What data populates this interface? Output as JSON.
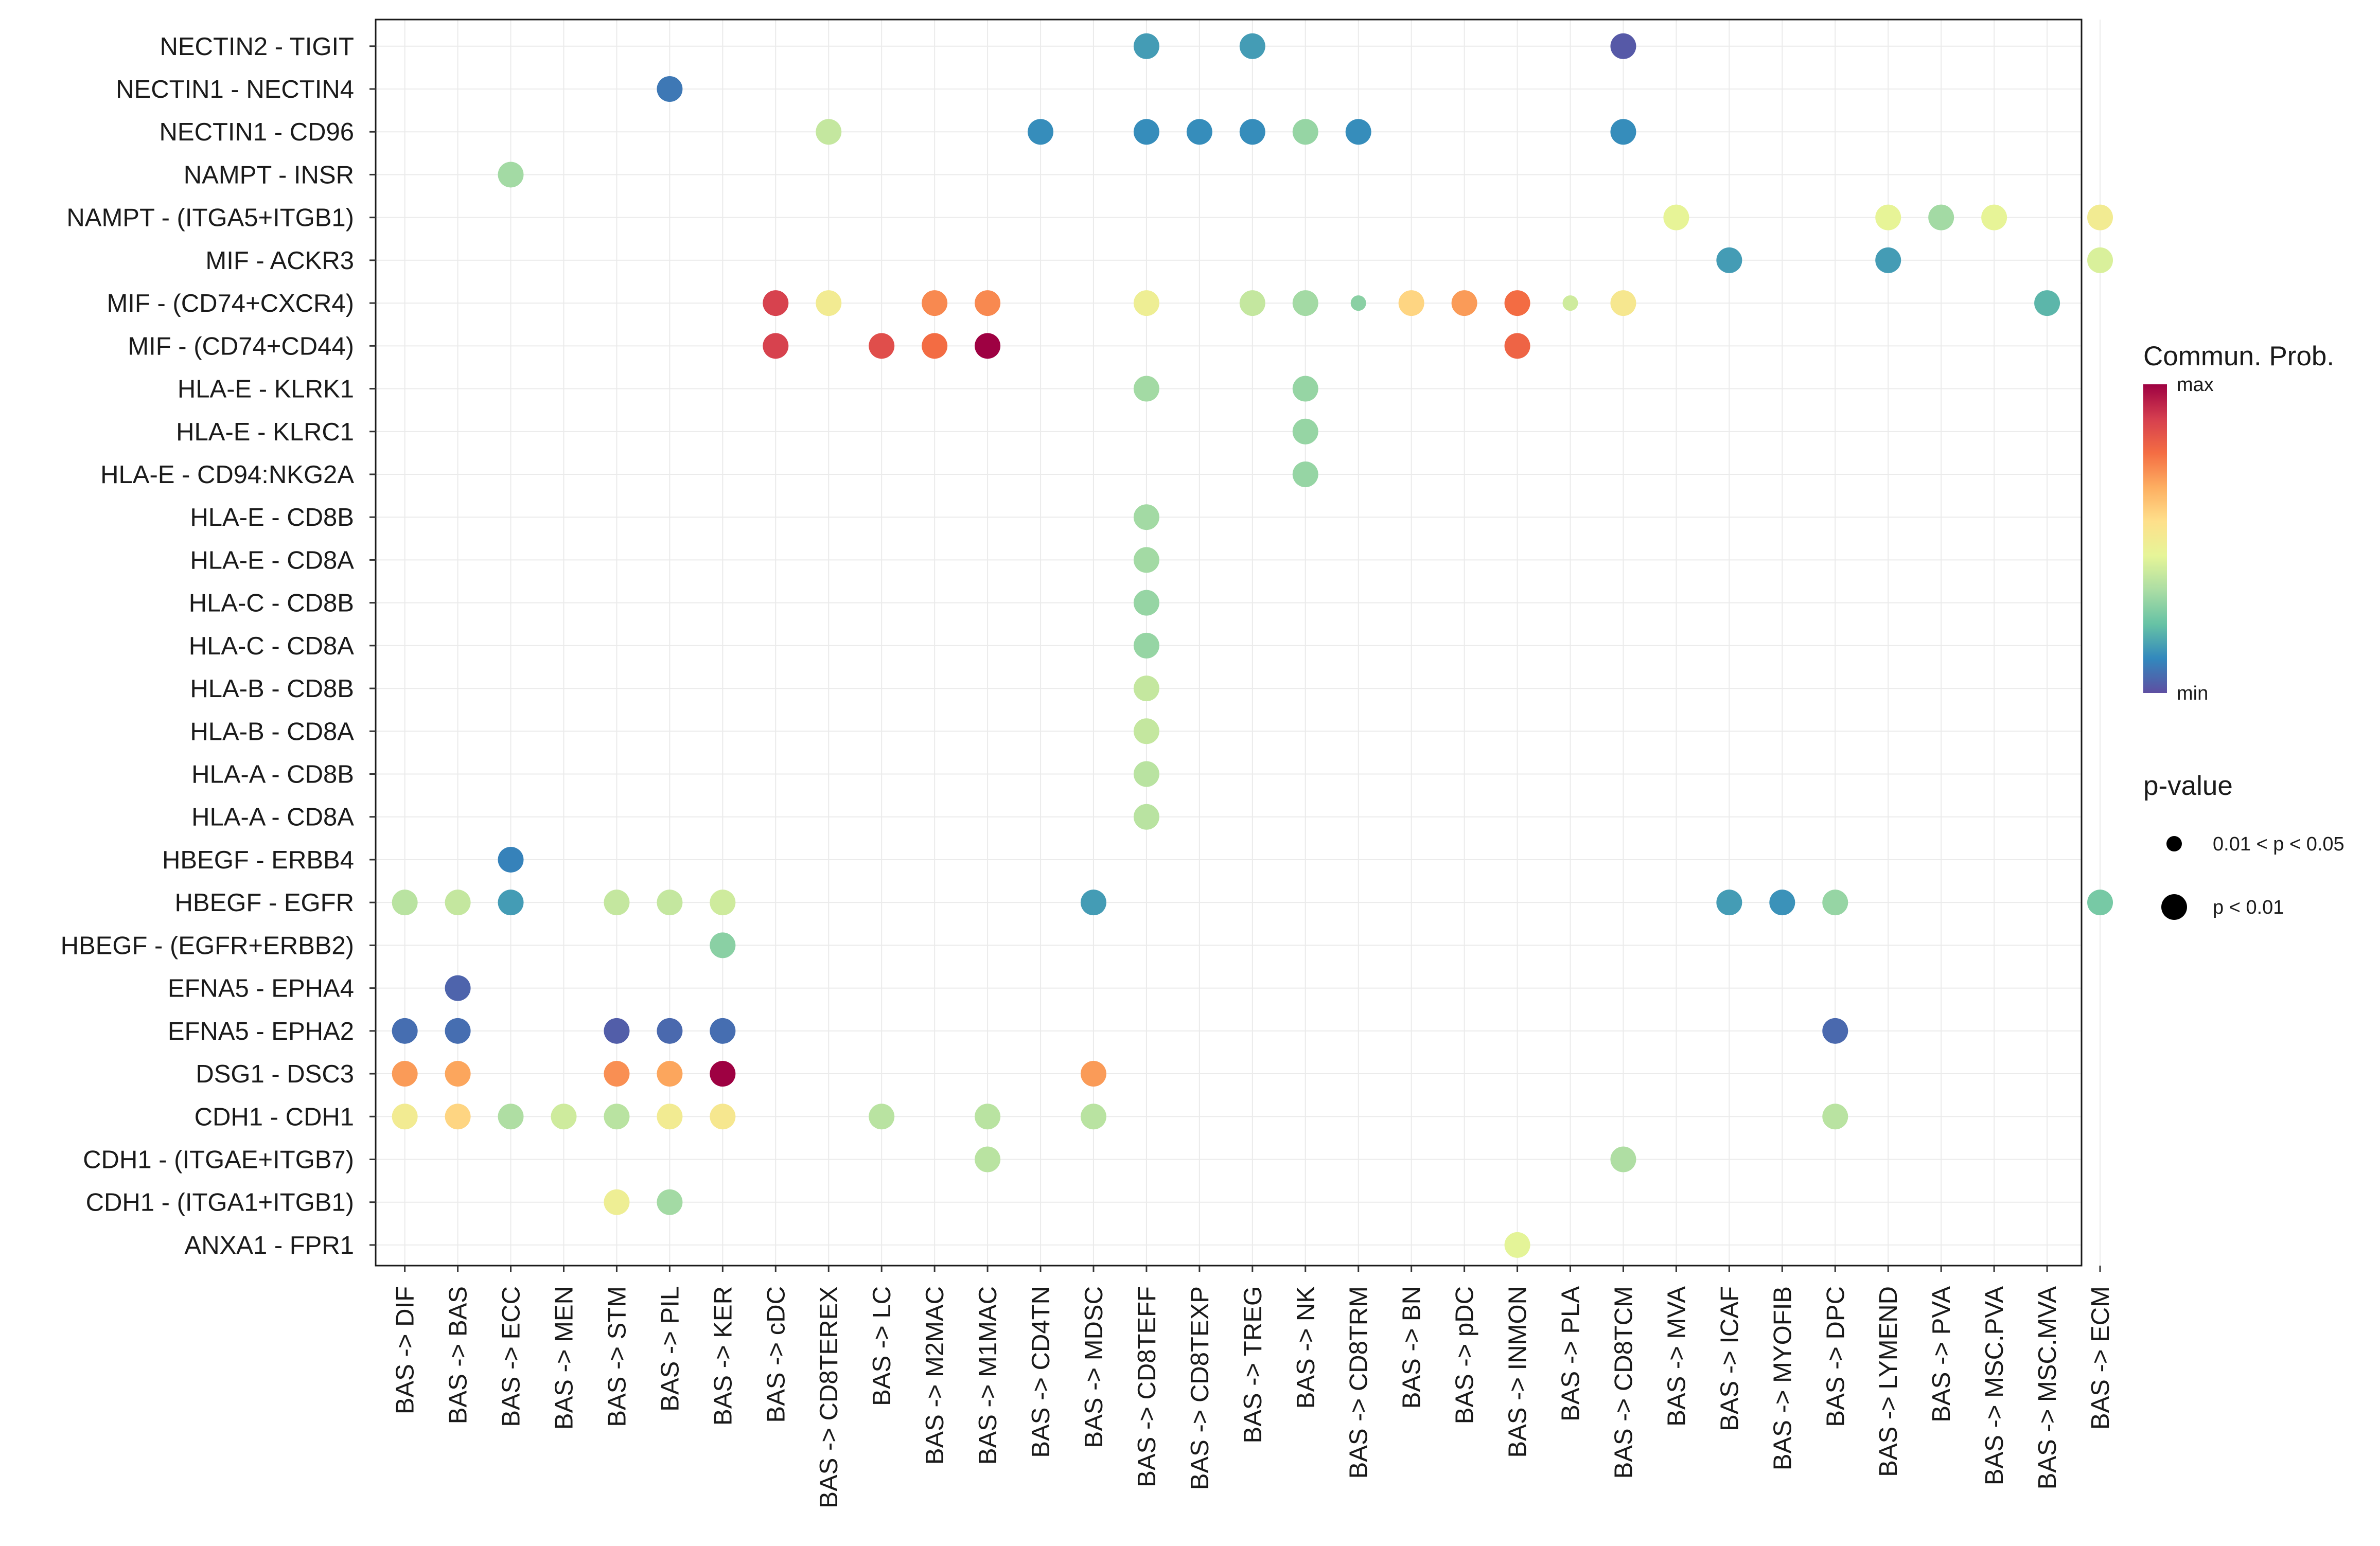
{
  "chart_data": {
    "type": "scatter",
    "subtype": "dot-matrix",
    "title": "",
    "xlabel": "",
    "ylabel": "",
    "grid": true,
    "legend_position": "right",
    "x_categories": [
      "BAS -> DIF",
      "BAS -> BAS",
      "BAS -> ECC",
      "BAS -> MEN",
      "BAS -> STM",
      "BAS -> PIL",
      "BAS -> KER",
      "BAS -> cDC",
      "BAS -> CD8TEREX",
      "BAS -> LC",
      "BAS -> M2MAC",
      "BAS -> M1MAC",
      "BAS -> CD4TN",
      "BAS -> MDSC",
      "BAS -> CD8TEFF",
      "BAS -> CD8TEXP",
      "BAS -> TREG",
      "BAS -> NK",
      "BAS -> CD8TRM",
      "BAS -> BN",
      "BAS -> pDC",
      "BAS -> INMON",
      "BAS -> PLA",
      "BAS -> CD8TCM",
      "BAS -> MVA",
      "BAS -> ICAF",
      "BAS -> MYOFIB",
      "BAS -> DPC",
      "BAS -> LYMEND",
      "BAS -> PVA",
      "BAS -> MSC.PVA",
      "BAS -> MSC.MVA",
      "BAS -> ECM"
    ],
    "y_categories": [
      "NECTIN2 - TIGIT",
      "NECTIN1 - NECTIN4",
      "NECTIN1 - CD96",
      "NAMPT - INSR",
      "NAMPT - (ITGA5+ITGB1)",
      "MIF - ACKR3",
      "MIF - (CD74+CXCR4)",
      "MIF - (CD74+CD44)",
      "HLA-E - KLRK1",
      "HLA-E - KLRC1",
      "HLA-E - CD94:NKG2A",
      "HLA-E - CD8B",
      "HLA-E - CD8A",
      "HLA-C - CD8B",
      "HLA-C - CD8A",
      "HLA-B - CD8B",
      "HLA-B - CD8A",
      "HLA-A - CD8B",
      "HLA-A - CD8A",
      "HBEGF - ERBB4",
      "HBEGF - EGFR",
      "HBEGF - (EGFR+ERBB2)",
      "EFNA5 - EPHA4",
      "EFNA5 - EPHA2",
      "DSG1 - DSC3",
      "CDH1 - CDH1",
      "CDH1 - (ITGAE+ITGB7)",
      "CDH1 - (ITGA1+ITGB1)",
      "ANXA1 - FPR1"
    ],
    "points": [
      {
        "x": "BAS -> CD8TEFF",
        "y": "NECTIN2 - TIGIT",
        "prob": 0.15,
        "p": "p < 0.01"
      },
      {
        "x": "BAS -> TREG",
        "y": "NECTIN2 - TIGIT",
        "prob": 0.15,
        "p": "p < 0.01"
      },
      {
        "x": "BAS -> CD8TCM",
        "y": "NECTIN2 - TIGIT",
        "prob": 0.02,
        "p": "p < 0.01"
      },
      {
        "x": "BAS -> PIL",
        "y": "NECTIN1 - NECTIN4",
        "prob": 0.08,
        "p": "p < 0.01"
      },
      {
        "x": "BAS -> CD8TEREX",
        "y": "NECTIN1 - CD96",
        "prob": 0.38,
        "p": "p < 0.01"
      },
      {
        "x": "BAS -> CD4TN",
        "y": "NECTIN1 - CD96",
        "prob": 0.12,
        "p": "p < 0.01"
      },
      {
        "x": "BAS -> CD8TEFF",
        "y": "NECTIN1 - CD96",
        "prob": 0.12,
        "p": "p < 0.01"
      },
      {
        "x": "BAS -> CD8TEXP",
        "y": "NECTIN1 - CD96",
        "prob": 0.12,
        "p": "p < 0.01"
      },
      {
        "x": "BAS -> TREG",
        "y": "NECTIN1 - CD96",
        "prob": 0.12,
        "p": "p < 0.01"
      },
      {
        "x": "BAS -> NK",
        "y": "NECTIN1 - CD96",
        "prob": 0.3,
        "p": "p < 0.01"
      },
      {
        "x": "BAS -> CD8TRM",
        "y": "NECTIN1 - CD96",
        "prob": 0.12,
        "p": "p < 0.01"
      },
      {
        "x": "BAS -> CD8TCM",
        "y": "NECTIN1 - CD96",
        "prob": 0.12,
        "p": "p < 0.01"
      },
      {
        "x": "BAS -> ECC",
        "y": "NAMPT - INSR",
        "prob": 0.32,
        "p": "p < 0.01"
      },
      {
        "x": "BAS -> MVA",
        "y": "NAMPT - (ITGA5+ITGB1)",
        "prob": 0.45,
        "p": "p < 0.01"
      },
      {
        "x": "BAS -> LYMEND",
        "y": "NAMPT - (ITGA5+ITGB1)",
        "prob": 0.45,
        "p": "p < 0.01"
      },
      {
        "x": "BAS -> PVA",
        "y": "NAMPT - (ITGA5+ITGB1)",
        "prob": 0.32,
        "p": "p < 0.01"
      },
      {
        "x": "BAS -> MSC.PVA",
        "y": "NAMPT - (ITGA5+ITGB1)",
        "prob": 0.45,
        "p": "p < 0.01"
      },
      {
        "x": "BAS -> ECM",
        "y": "NAMPT - (ITGA5+ITGB1)",
        "prob": 0.5,
        "p": "p < 0.01"
      },
      {
        "x": "BAS -> ICAF",
        "y": "MIF - ACKR3",
        "prob": 0.15,
        "p": "p < 0.01"
      },
      {
        "x": "BAS -> LYMEND",
        "y": "MIF - ACKR3",
        "prob": 0.15,
        "p": "p < 0.01"
      },
      {
        "x": "BAS -> ECM",
        "y": "MIF - ACKR3",
        "prob": 0.42,
        "p": "p < 0.01"
      },
      {
        "x": "BAS -> cDC",
        "y": "MIF - (CD74+CXCR4)",
        "prob": 0.88,
        "p": "p < 0.01"
      },
      {
        "x": "BAS -> CD8TEREX",
        "y": "MIF - (CD74+CXCR4)",
        "prob": 0.5,
        "p": "p < 0.01"
      },
      {
        "x": "BAS -> M2MAC",
        "y": "MIF - (CD74+CXCR4)",
        "prob": 0.73,
        "p": "p < 0.01"
      },
      {
        "x": "BAS -> M1MAC",
        "y": "MIF - (CD74+CXCR4)",
        "prob": 0.73,
        "p": "p < 0.01"
      },
      {
        "x": "BAS -> CD8TEFF",
        "y": "MIF - (CD74+CXCR4)",
        "prob": 0.48,
        "p": "p < 0.01"
      },
      {
        "x": "BAS -> TREG",
        "y": "MIF - (CD74+CXCR4)",
        "prob": 0.38,
        "p": "p < 0.01"
      },
      {
        "x": "BAS -> NK",
        "y": "MIF - (CD74+CXCR4)",
        "prob": 0.32,
        "p": "p < 0.01"
      },
      {
        "x": "BAS -> CD8TRM",
        "y": "MIF - (CD74+CXCR4)",
        "prob": 0.28,
        "p": "0.01 < p < 0.05"
      },
      {
        "x": "BAS -> BN",
        "y": "MIF - (CD74+CXCR4)",
        "prob": 0.58,
        "p": "p < 0.01"
      },
      {
        "x": "BAS -> pDC",
        "y": "MIF - (CD74+CXCR4)",
        "prob": 0.7,
        "p": "p < 0.01"
      },
      {
        "x": "BAS -> INMON",
        "y": "MIF - (CD74+CXCR4)",
        "prob": 0.78,
        "p": "p < 0.01"
      },
      {
        "x": "BAS -> PLA",
        "y": "MIF - (CD74+CXCR4)",
        "prob": 0.4,
        "p": "0.01 < p < 0.05"
      },
      {
        "x": "BAS -> CD8TCM",
        "y": "MIF - (CD74+CXCR4)",
        "prob": 0.52,
        "p": "p < 0.01"
      },
      {
        "x": "BAS -> MSC.MVA",
        "y": "MIF - (CD74+CXCR4)",
        "prob": 0.2,
        "p": "p < 0.01"
      },
      {
        "x": "BAS -> cDC",
        "y": "MIF - (CD74+CD44)",
        "prob": 0.88,
        "p": "p < 0.01"
      },
      {
        "x": "BAS -> LC",
        "y": "MIF - (CD74+CD44)",
        "prob": 0.85,
        "p": "p < 0.01"
      },
      {
        "x": "BAS -> M2MAC",
        "y": "MIF - (CD74+CD44)",
        "prob": 0.78,
        "p": "p < 0.01"
      },
      {
        "x": "BAS -> M1MAC",
        "y": "MIF - (CD74+CD44)",
        "prob": 1.0,
        "p": "p < 0.01"
      },
      {
        "x": "BAS -> INMON",
        "y": "MIF - (CD74+CD44)",
        "prob": 0.8,
        "p": "p < 0.01"
      },
      {
        "x": "BAS -> CD8TEFF",
        "y": "HLA-E - KLRK1",
        "prob": 0.32,
        "p": "p < 0.01"
      },
      {
        "x": "BAS -> NK",
        "y": "HLA-E - KLRK1",
        "prob": 0.3,
        "p": "p < 0.01"
      },
      {
        "x": "BAS -> NK",
        "y": "HLA-E - KLRC1",
        "prob": 0.3,
        "p": "p < 0.01"
      },
      {
        "x": "BAS -> NK",
        "y": "HLA-E - CD94:NKG2A",
        "prob": 0.3,
        "p": "p < 0.01"
      },
      {
        "x": "BAS -> CD8TEFF",
        "y": "HLA-E - CD8B",
        "prob": 0.32,
        "p": "p < 0.01"
      },
      {
        "x": "BAS -> CD8TEFF",
        "y": "HLA-E - CD8A",
        "prob": 0.32,
        "p": "p < 0.01"
      },
      {
        "x": "BAS -> CD8TEFF",
        "y": "HLA-C - CD8B",
        "prob": 0.3,
        "p": "p < 0.01"
      },
      {
        "x": "BAS -> CD8TEFF",
        "y": "HLA-C - CD8A",
        "prob": 0.3,
        "p": "p < 0.01"
      },
      {
        "x": "BAS -> CD8TEFF",
        "y": "HLA-B - CD8B",
        "prob": 0.38,
        "p": "p < 0.01"
      },
      {
        "x": "BAS -> CD8TEFF",
        "y": "HLA-B - CD8A",
        "prob": 0.38,
        "p": "p < 0.01"
      },
      {
        "x": "BAS -> CD8TEFF",
        "y": "HLA-A - CD8B",
        "prob": 0.36,
        "p": "p < 0.01"
      },
      {
        "x": "BAS -> CD8TEFF",
        "y": "HLA-A - CD8A",
        "prob": 0.36,
        "p": "p < 0.01"
      },
      {
        "x": "BAS -> ECC",
        "y": "HBEGF - ERBB4",
        "prob": 0.1,
        "p": "p < 0.01"
      },
      {
        "x": "BAS -> DIF",
        "y": "HBEGF - EGFR",
        "prob": 0.36,
        "p": "p < 0.01"
      },
      {
        "x": "BAS -> BAS",
        "y": "HBEGF - EGFR",
        "prob": 0.38,
        "p": "p < 0.01"
      },
      {
        "x": "BAS -> ECC",
        "y": "HBEGF - EGFR",
        "prob": 0.15,
        "p": "p < 0.01"
      },
      {
        "x": "BAS -> STM",
        "y": "HBEGF - EGFR",
        "prob": 0.38,
        "p": "p < 0.01"
      },
      {
        "x": "BAS -> PIL",
        "y": "HBEGF - EGFR",
        "prob": 0.38,
        "p": "p < 0.01"
      },
      {
        "x": "BAS -> KER",
        "y": "HBEGF - EGFR",
        "prob": 0.4,
        "p": "p < 0.01"
      },
      {
        "x": "BAS -> MDSC",
        "y": "HBEGF - EGFR",
        "prob": 0.15,
        "p": "p < 0.01"
      },
      {
        "x": "BAS -> ICAF",
        "y": "HBEGF - EGFR",
        "prob": 0.15,
        "p": "p < 0.01"
      },
      {
        "x": "BAS -> MYOFIB",
        "y": "HBEGF - EGFR",
        "prob": 0.13,
        "p": "p < 0.01"
      },
      {
        "x": "BAS -> DPC",
        "y": "HBEGF - EGFR",
        "prob": 0.3,
        "p": "p < 0.01"
      },
      {
        "x": "BAS -> ECM",
        "y": "HBEGF - EGFR",
        "prob": 0.25,
        "p": "p < 0.01"
      },
      {
        "x": "BAS -> KER",
        "y": "HBEGF - (EGFR+ERBB2)",
        "prob": 0.28,
        "p": "p < 0.01"
      },
      {
        "x": "BAS -> BAS",
        "y": "EFNA5 - EPHA4",
        "prob": 0.04,
        "p": "p < 0.01"
      },
      {
        "x": "BAS -> DIF",
        "y": "EFNA5 - EPHA2",
        "prob": 0.06,
        "p": "p < 0.01"
      },
      {
        "x": "BAS -> BAS",
        "y": "EFNA5 - EPHA2",
        "prob": 0.06,
        "p": "p < 0.01"
      },
      {
        "x": "BAS -> STM",
        "y": "EFNA5 - EPHA2",
        "prob": 0.03,
        "p": "p < 0.01"
      },
      {
        "x": "BAS -> PIL",
        "y": "EFNA5 - EPHA2",
        "prob": 0.05,
        "p": "p < 0.01"
      },
      {
        "x": "BAS -> KER",
        "y": "EFNA5 - EPHA2",
        "prob": 0.06,
        "p": "p < 0.01"
      },
      {
        "x": "BAS -> DPC",
        "y": "EFNA5 - EPHA2",
        "prob": 0.05,
        "p": "p < 0.01"
      },
      {
        "x": "BAS -> DIF",
        "y": "DSG1 - DSC3",
        "prob": 0.7,
        "p": "p < 0.01"
      },
      {
        "x": "BAS -> BAS",
        "y": "DSG1 - DSC3",
        "prob": 0.68,
        "p": "p < 0.01"
      },
      {
        "x": "BAS -> STM",
        "y": "DSG1 - DSC3",
        "prob": 0.72,
        "p": "p < 0.01"
      },
      {
        "x": "BAS -> PIL",
        "y": "DSG1 - DSC3",
        "prob": 0.68,
        "p": "p < 0.01"
      },
      {
        "x": "BAS -> KER",
        "y": "DSG1 - DSC3",
        "prob": 1.0,
        "p": "p < 0.01"
      },
      {
        "x": "BAS -> MDSC",
        "y": "DSG1 - DSC3",
        "prob": 0.7,
        "p": "p < 0.01"
      },
      {
        "x": "BAS -> DIF",
        "y": "CDH1 - CDH1",
        "prob": 0.5,
        "p": "p < 0.01"
      },
      {
        "x": "BAS -> BAS",
        "y": "CDH1 - CDH1",
        "prob": 0.58,
        "p": "p < 0.01"
      },
      {
        "x": "BAS -> ECC",
        "y": "CDH1 - CDH1",
        "prob": 0.34,
        "p": "p < 0.01"
      },
      {
        "x": "BAS -> MEN",
        "y": "CDH1 - CDH1",
        "prob": 0.4,
        "p": "p < 0.01"
      },
      {
        "x": "BAS -> STM",
        "y": "CDH1 - CDH1",
        "prob": 0.36,
        "p": "p < 0.01"
      },
      {
        "x": "BAS -> PIL",
        "y": "CDH1 - CDH1",
        "prob": 0.5,
        "p": "p < 0.01"
      },
      {
        "x": "BAS -> KER",
        "y": "CDH1 - CDH1",
        "prob": 0.52,
        "p": "p < 0.01"
      },
      {
        "x": "BAS -> LC",
        "y": "CDH1 - CDH1",
        "prob": 0.36,
        "p": "p < 0.01"
      },
      {
        "x": "BAS -> M1MAC",
        "y": "CDH1 - CDH1",
        "prob": 0.36,
        "p": "p < 0.01"
      },
      {
        "x": "BAS -> MDSC",
        "y": "CDH1 - CDH1",
        "prob": 0.36,
        "p": "p < 0.01"
      },
      {
        "x": "BAS -> DPC",
        "y": "CDH1 - CDH1",
        "prob": 0.36,
        "p": "p < 0.01"
      },
      {
        "x": "BAS -> M1MAC",
        "y": "CDH1 - (ITGAE+ITGB7)",
        "prob": 0.36,
        "p": "p < 0.01"
      },
      {
        "x": "BAS -> CD8TCM",
        "y": "CDH1 - (ITGAE+ITGB7)",
        "prob": 0.34,
        "p": "p < 0.01"
      },
      {
        "x": "BAS -> STM",
        "y": "CDH1 - (ITGA1+ITGB1)",
        "prob": 0.48,
        "p": "p < 0.01"
      },
      {
        "x": "BAS -> PIL",
        "y": "CDH1 - (ITGA1+ITGB1)",
        "prob": 0.32,
        "p": "p < 0.01"
      },
      {
        "x": "BAS -> INMON",
        "y": "ANXA1 - FPR1",
        "prob": 0.44,
        "p": "p < 0.01"
      }
    ],
    "color_legend": {
      "title": "Commun. Prob.",
      "max_label": "max",
      "min_label": "min"
    },
    "size_legend": {
      "title": "p-value",
      "entries": [
        "0.01 < p < 0.05",
        "p < 0.01"
      ]
    },
    "colors": {
      "palette": [
        "#5E4FA2",
        "#3288BD",
        "#66C2A5",
        "#ABDDA4",
        "#E6F598",
        "#FEE08B",
        "#FDAE61",
        "#F46D43",
        "#D53E4F",
        "#9E0142"
      ],
      "grid": "#ebebeb",
      "panel_border": "#1a1a1a"
    }
  }
}
